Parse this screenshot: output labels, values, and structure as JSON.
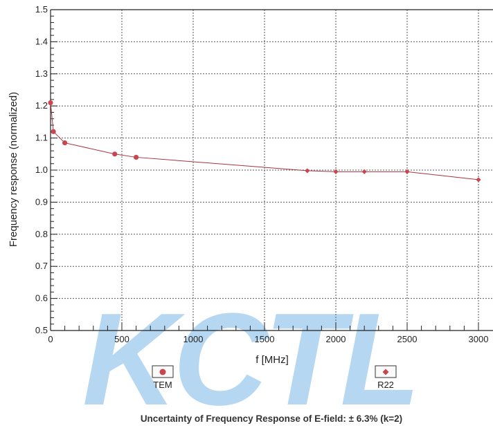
{
  "chart_data": {
    "type": "line",
    "title": "",
    "xlabel": "f [MHz]",
    "ylabel": "Frequency response (normalized)",
    "xlim": [
      0,
      3000
    ],
    "ylim": [
      0.5,
      1.5
    ],
    "grid": true,
    "x_ticks": [
      0,
      500,
      1000,
      1500,
      2000,
      2500,
      3000
    ],
    "y_ticks": [
      "0.5",
      "0.6",
      "0.7",
      "0.8",
      "0.9",
      "1.0",
      "1.1",
      "1.2",
      "1.3",
      "1.4",
      "1.5"
    ],
    "series": [
      {
        "name": "TEM",
        "marker": "circle",
        "color": "#c8464e",
        "x": [
          0,
          20,
          100,
          450,
          600
        ],
        "y": [
          1.21,
          1.12,
          1.085,
          1.05,
          1.04
        ]
      },
      {
        "name": "R22",
        "marker": "diamond",
        "color": "#c8464e",
        "x": [
          1800,
          2000,
          2200,
          2500,
          3000
        ],
        "y": [
          0.998,
          0.995,
          0.995,
          0.995,
          0.97
        ]
      }
    ],
    "legend_placement": "bottom",
    "caption": "Uncertainty of Frequency Response of E-field: ± 6.3% (k=2)"
  },
  "watermark": {
    "text": "KCTL",
    "color": "#5ea8e4"
  },
  "colors": {
    "line": "#a8323a",
    "grid": "#555555",
    "axis": "#222222"
  }
}
